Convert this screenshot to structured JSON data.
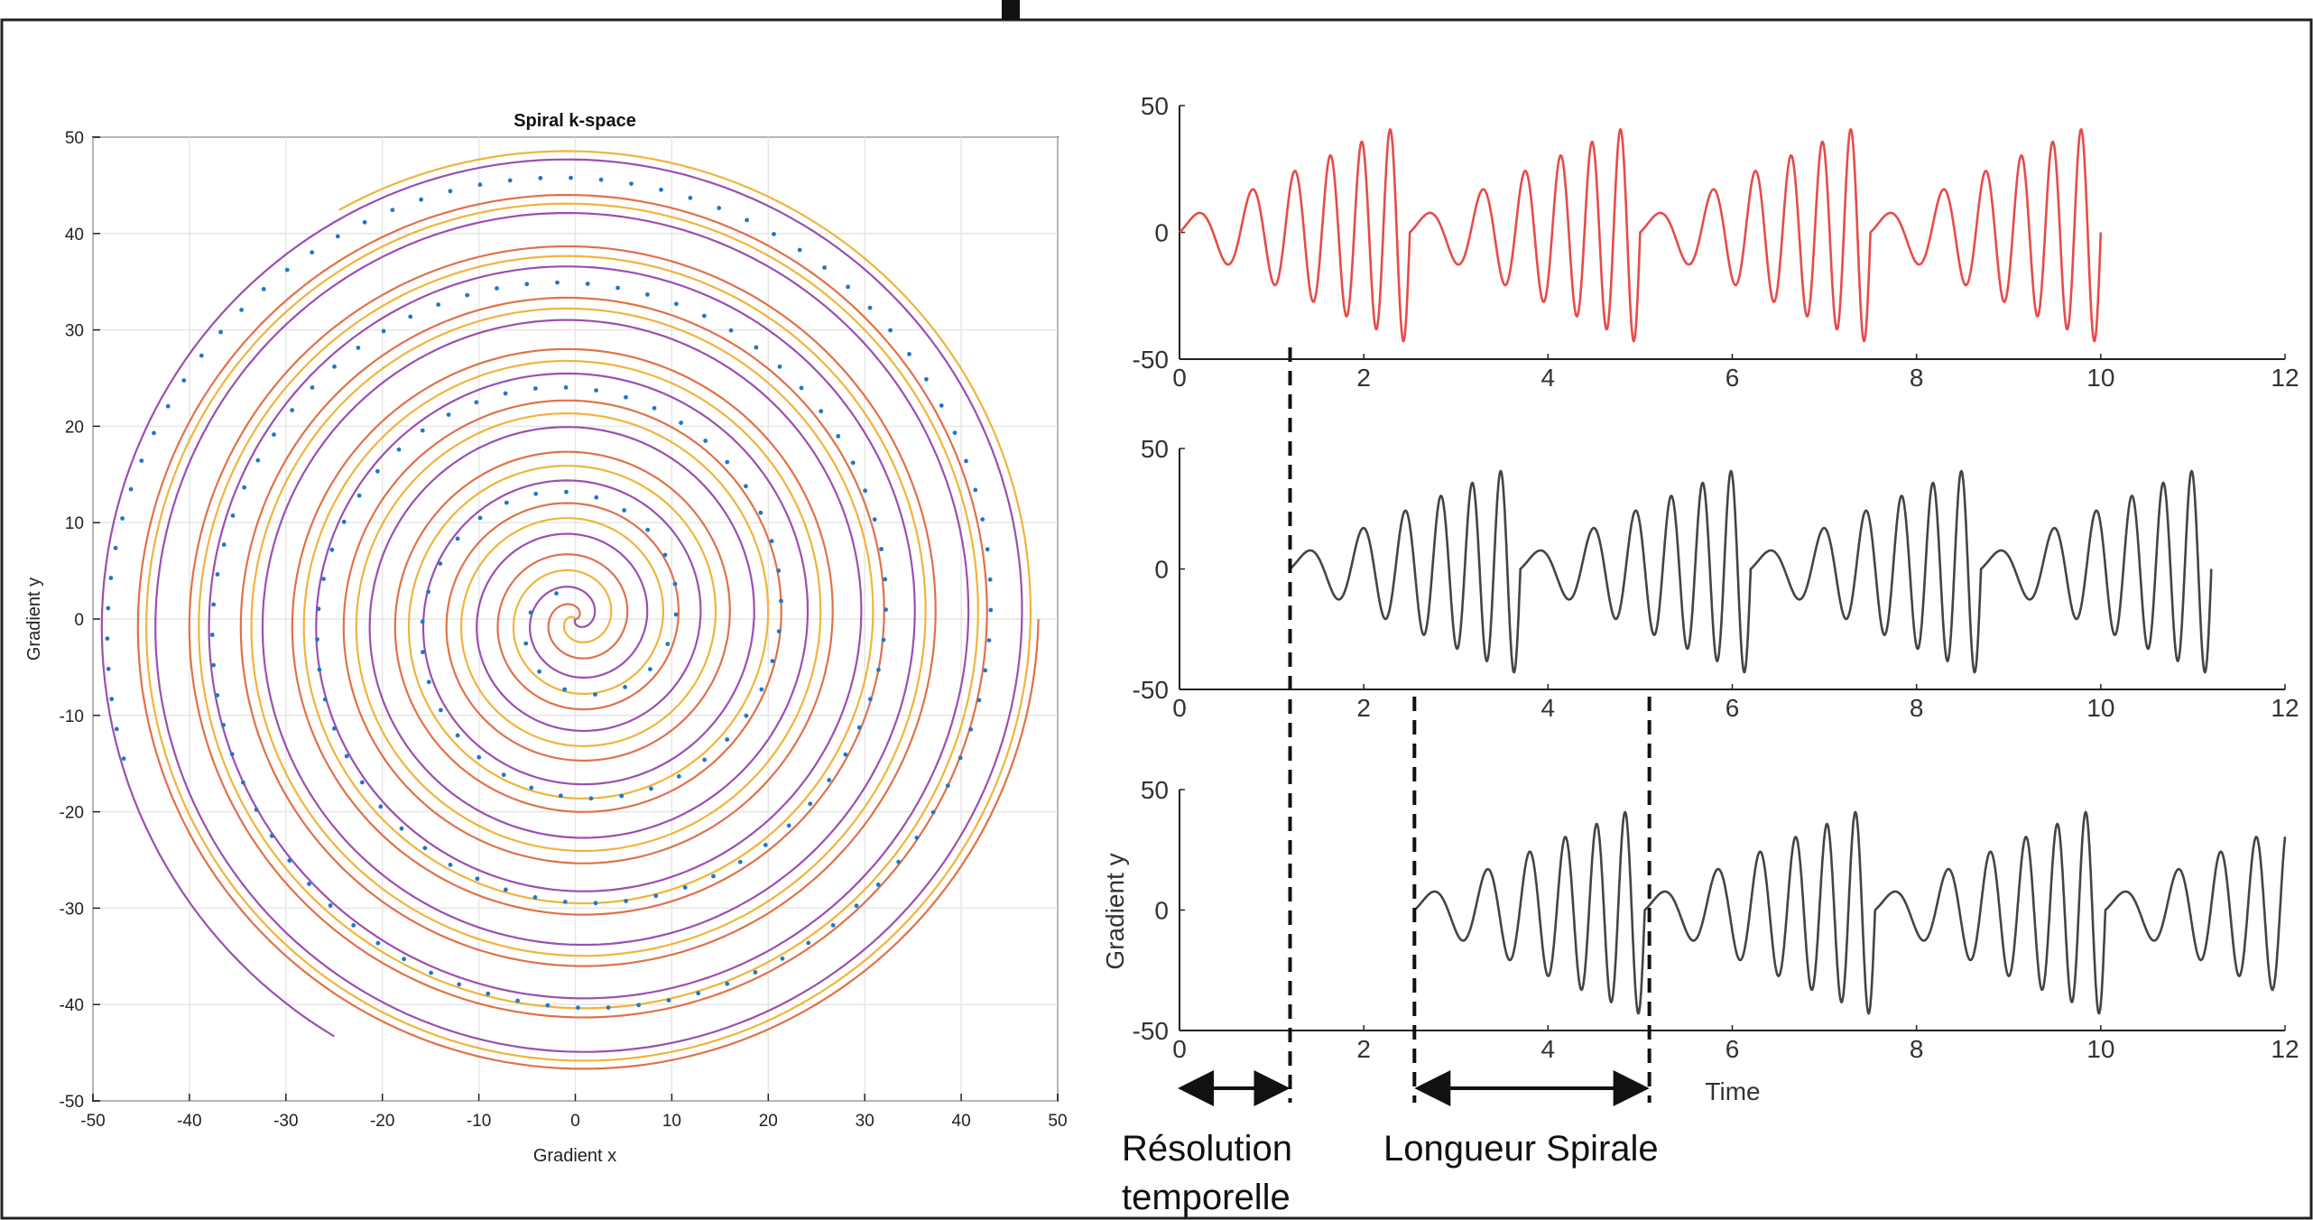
{
  "colors": {
    "spiral_orange": "#e0714a",
    "spiral_yellow": "#f0b43c",
    "spiral_purple": "#9b4fb0",
    "spiral_dots": "#1f77c8",
    "wave_red": "#e64b4b",
    "wave_dark": "#444444",
    "grid": "#e6e6e6"
  },
  "chart_data": [
    {
      "type": "scatter",
      "title": "Spiral k-space",
      "xlabel": "Gradient x",
      "ylabel": "Gradient y",
      "xlim": [
        -50,
        50
      ],
      "ylim": [
        -50,
        50
      ],
      "xticks": [
        "-50",
        "-40",
        "-30",
        "-20",
        "-10",
        "0",
        "10",
        "20",
        "30",
        "40",
        "50"
      ],
      "yticks": [
        "50",
        "40",
        "30",
        "20",
        "10",
        "0",
        "-10",
        "-20",
        "-30",
        "-40",
        "-50"
      ],
      "grid": true,
      "series": [
        {
          "kind": "spiral-line",
          "color": "spiral_orange",
          "turns": 9,
          "phase_deg": 0,
          "r_start": 0,
          "r_end": 48
        },
        {
          "kind": "spiral-line",
          "color": "spiral_yellow",
          "turns": 9,
          "phase_deg": 120,
          "r_start": 0,
          "r_end": 49
        },
        {
          "kind": "spiral-line",
          "color": "spiral_purple",
          "turns": 9,
          "phase_deg": 240,
          "r_start": 0,
          "r_end": 50
        },
        {
          "kind": "spiral-dots",
          "color": "spiral_dots",
          "turns": 4.5,
          "r_end": 49,
          "points": 220
        }
      ]
    },
    {
      "type": "line",
      "xlim": [
        0,
        12
      ],
      "ylim": [
        -50,
        50
      ],
      "xticks": [
        "0",
        "2",
        "4",
        "6",
        "8",
        "10",
        "12"
      ],
      "yticks": [
        "50",
        "0",
        "-50"
      ],
      "color": "wave_red",
      "start_time": 0,
      "end_time": 10,
      "period": 2.5,
      "amplitude": 44
    },
    {
      "type": "line",
      "xlim": [
        0,
        12
      ],
      "ylim": [
        -50,
        50
      ],
      "xticks": [
        "0",
        "2",
        "4",
        "6",
        "8",
        "10",
        "12"
      ],
      "yticks": [
        "50",
        "0",
        "-50"
      ],
      "color": "wave_dark",
      "start_time": 1.2,
      "end_time": 11.2,
      "period": 2.5,
      "amplitude": 44
    },
    {
      "type": "line",
      "xlim": [
        0,
        12
      ],
      "ylim": [
        -50,
        50
      ],
      "xticks": [
        "0",
        "2",
        "4",
        "6",
        "8",
        "10",
        "12"
      ],
      "yticks": [
        "50",
        "0",
        "-50"
      ],
      "xlabel": "Time",
      "ylabel": "Gradient y",
      "color": "wave_dark",
      "start_time": 2.55,
      "end_time": 12,
      "period": 2.5,
      "amplitude": 44
    }
  ],
  "annotations": {
    "markers_time": [
      1.2,
      2.55,
      5.1
    ],
    "resolution_label_line1": "Résolution",
    "resolution_label_line2": "temporelle",
    "length_label": "Longueur Spirale"
  }
}
